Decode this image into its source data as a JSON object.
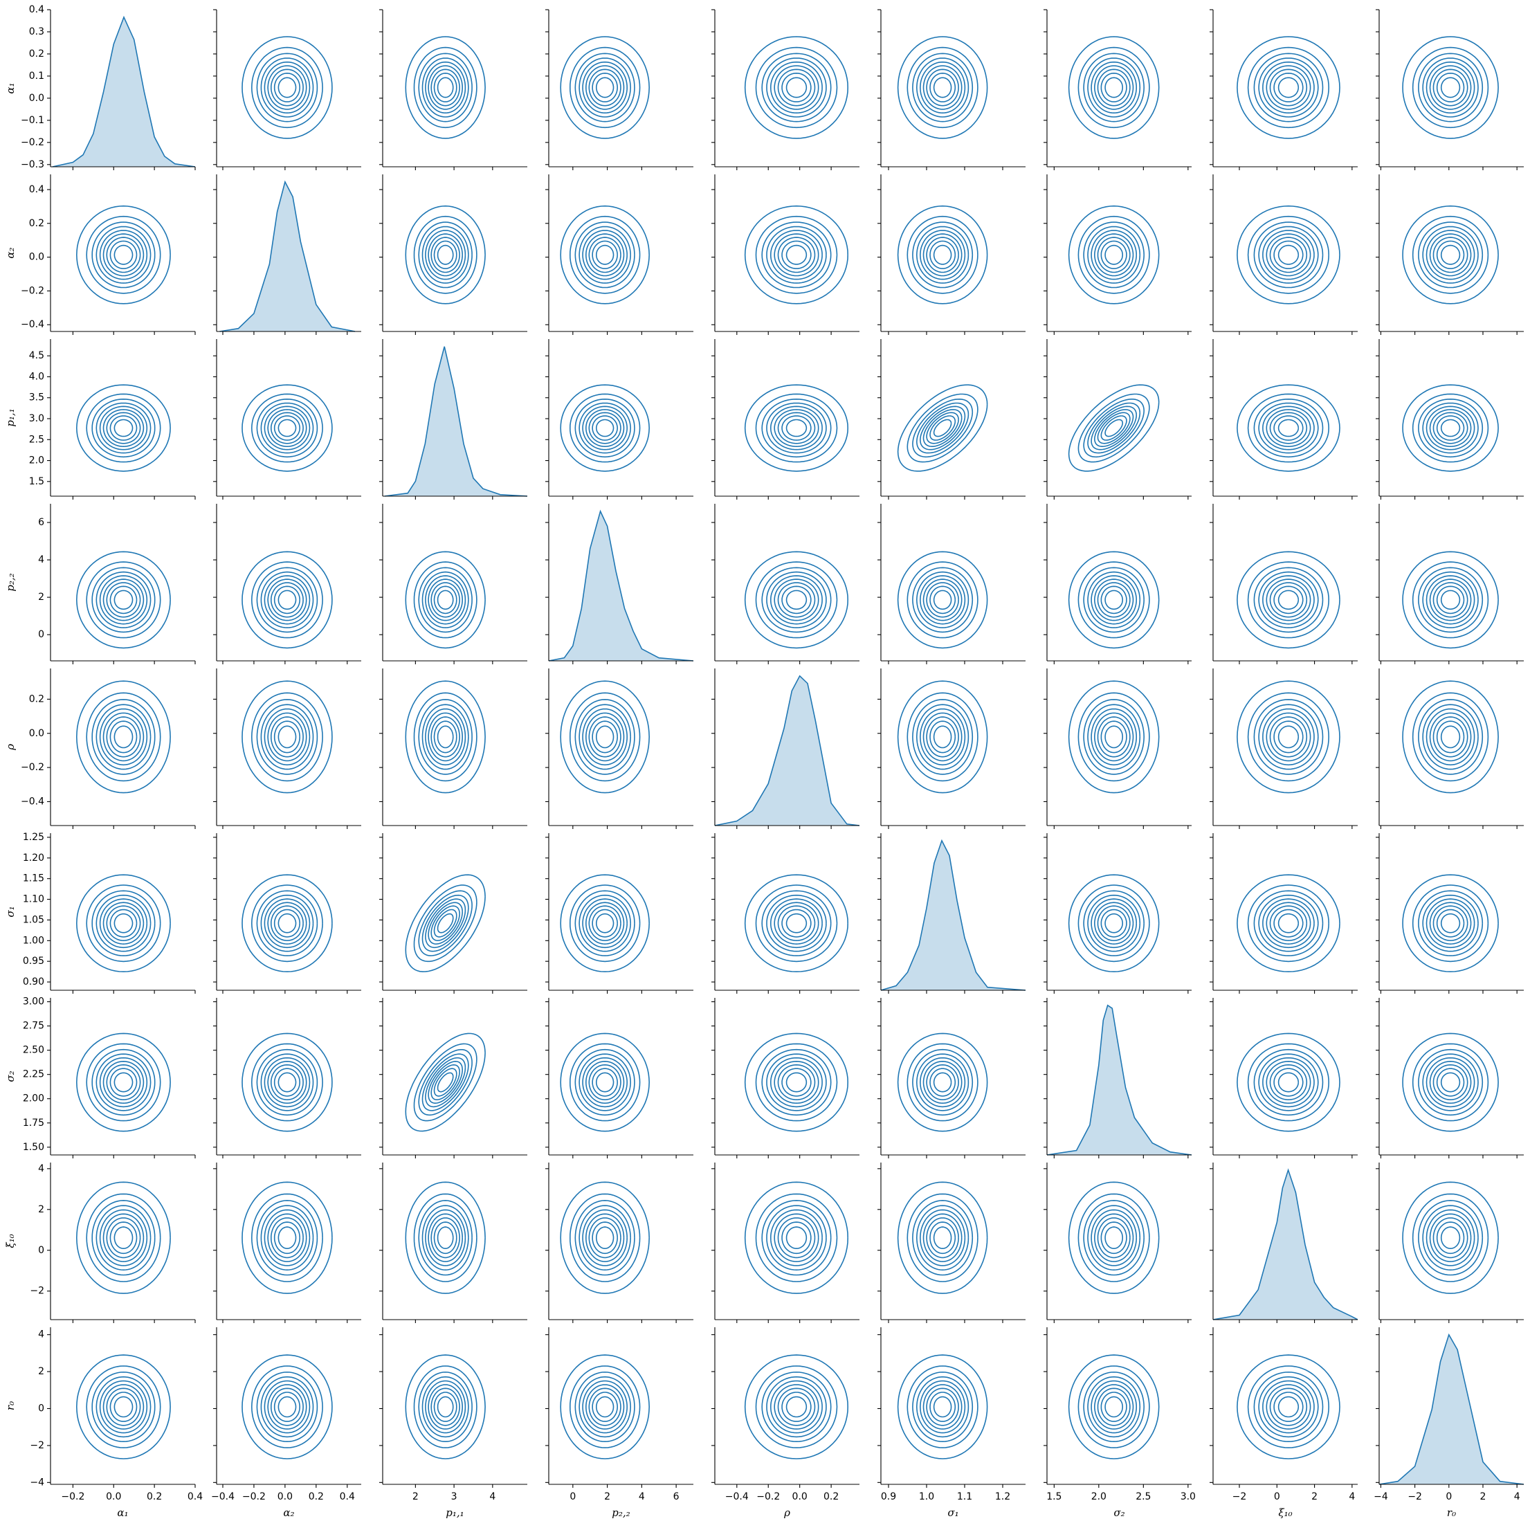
{
  "chart_data": {
    "type": "pairplot",
    "color": "#1f77b4",
    "contour_levels": [
      0.05,
      0.156,
      0.261,
      0.367,
      0.472,
      0.578,
      0.683,
      0.789,
      0.894
    ],
    "correlations": [
      {
        "pair": [
          2,
          5
        ],
        "r": 0.55
      },
      {
        "pair": [
          2,
          6
        ],
        "r": 0.6
      }
    ],
    "variables": [
      {
        "label": "α₁",
        "lim": [
          -0.31,
          0.4
        ],
        "yticks": [
          {
            "value": -0.3,
            "label": "−0.3"
          },
          {
            "value": -0.2,
            "label": "−0.2"
          },
          {
            "value": -0.1,
            "label": "−0.1"
          },
          {
            "value": 0,
            "label": "0.0"
          },
          0.1,
          0.2,
          0.3,
          0.4
        ],
        "xticks": [
          {
            "value": -0.2,
            "label": "−0.2"
          },
          {
            "value": 0,
            "label": "0.0"
          },
          0.2,
          0.4
        ],
        "density": {
          "x": [
            -0.3,
            -0.2,
            -0.15,
            -0.1,
            -0.05,
            0,
            0.05,
            0.1,
            0.15,
            0.2,
            0.25,
            0.3,
            0.4
          ],
          "y": [
            0,
            0.03,
            0.08,
            0.22,
            0.5,
            0.82,
            1.0,
            0.85,
            0.5,
            0.2,
            0.07,
            0.02,
            0
          ]
        }
      },
      {
        "label": "α₂",
        "lim": [
          -0.44,
          0.49
        ],
        "yticks": [
          {
            "value": -0.4,
            "label": "−0.4"
          },
          {
            "value": -0.2,
            "label": "−0.2"
          },
          {
            "value": 0,
            "label": "0.0"
          },
          0.2,
          0.4
        ],
        "xticks": [
          {
            "value": -0.4,
            "label": "−0.4"
          },
          {
            "value": -0.2,
            "label": "−0.2"
          },
          {
            "value": 0,
            "label": "0.0"
          },
          0.2,
          0.4
        ],
        "density": {
          "x": [
            -0.42,
            -0.3,
            -0.2,
            -0.1,
            -0.05,
            0,
            0.05,
            0.1,
            0.2,
            0.3,
            0.45
          ],
          "y": [
            0,
            0.02,
            0.12,
            0.45,
            0.8,
            1,
            0.9,
            0.6,
            0.18,
            0.03,
            0
          ]
        }
      },
      {
        "label": "p₁,₁",
        "lim": [
          1.15,
          4.9
        ],
        "yticks": [
          1.5,
          {
            "value": 2,
            "label": "2.0"
          },
          2.5,
          {
            "value": 3,
            "label": "3.0"
          },
          3.5,
          {
            "value": 4,
            "label": "4.0"
          },
          4.5
        ],
        "xticks": [
          2,
          3,
          4
        ],
        "density": {
          "x": [
            1.2,
            1.8,
            2.0,
            2.25,
            2.5,
            2.75,
            3.0,
            3.25,
            3.5,
            3.75,
            4.2,
            4.9
          ],
          "y": [
            0,
            0.02,
            0.1,
            0.35,
            0.75,
            1,
            0.72,
            0.35,
            0.12,
            0.05,
            0.01,
            0
          ]
        }
      },
      {
        "label": "p₂,₂",
        "lim": [
          -1.4,
          7.0
        ],
        "yticks": [
          0,
          2,
          4,
          6
        ],
        "xticks": [
          0,
          2,
          4,
          6
        ],
        "density": {
          "x": [
            -1.4,
            -0.5,
            0,
            0.5,
            1,
            1.6,
            2,
            2.5,
            3,
            3.5,
            4,
            5,
            7
          ],
          "y": [
            0,
            0.02,
            0.1,
            0.35,
            0.75,
            1,
            0.9,
            0.6,
            0.35,
            0.2,
            0.08,
            0.02,
            0
          ]
        }
      },
      {
        "label": "ρ",
        "lim": [
          -0.54,
          0.38
        ],
        "yticks": [
          {
            "value": -0.4,
            "label": "−0.4"
          },
          {
            "value": -0.2,
            "label": "−0.2"
          },
          {
            "value": 0,
            "label": "0.0"
          },
          0.2
        ],
        "xticks": [
          {
            "value": -0.4,
            "label": "−0.4"
          },
          {
            "value": -0.2,
            "label": "−0.2"
          },
          {
            "value": 0,
            "label": "0.0"
          },
          0.2
        ],
        "density": {
          "x": [
            -0.54,
            -0.4,
            -0.3,
            -0.2,
            -0.1,
            -0.05,
            0,
            0.05,
            0.1,
            0.2,
            0.3,
            0.38
          ],
          "y": [
            0,
            0.03,
            0.1,
            0.28,
            0.65,
            0.9,
            1,
            0.95,
            0.7,
            0.15,
            0.01,
            0
          ]
        }
      },
      {
        "label": "σ₁",
        "lim": [
          0.88,
          1.26
        ],
        "yticks": [
          {
            "value": 0.9,
            "label": "0.90"
          },
          0.95,
          {
            "value": 1,
            "label": "1.00"
          },
          1.05,
          {
            "value": 1.1,
            "label": "1.10"
          },
          1.15,
          {
            "value": 1.2,
            "label": "1.20"
          },
          1.25
        ],
        "xticks": [
          0.9,
          {
            "value": 1,
            "label": "1.0"
          },
          1.1,
          1.2
        ],
        "density": {
          "x": [
            0.88,
            0.92,
            0.95,
            0.98,
            1.0,
            1.02,
            1.04,
            1.06,
            1.08,
            1.1,
            1.13,
            1.16,
            1.26
          ],
          "y": [
            0,
            0.03,
            0.12,
            0.3,
            0.55,
            0.85,
            1,
            0.9,
            0.6,
            0.35,
            0.12,
            0.02,
            0
          ]
        }
      },
      {
        "label": "σ₂",
        "lim": [
          1.42,
          3.04
        ],
        "yticks": [
          {
            "value": 1.5,
            "label": "1.50"
          },
          1.75,
          {
            "value": 2,
            "label": "2.00"
          },
          2.25,
          {
            "value": 2.5,
            "label": "2.50"
          },
          2.75,
          {
            "value": 3,
            "label": "3.00"
          }
        ],
        "xticks": [
          1.5,
          {
            "value": 2,
            "label": "2.0"
          },
          2.5,
          {
            "value": 3,
            "label": "3.0"
          }
        ],
        "density": {
          "x": [
            1.42,
            1.75,
            1.9,
            2.0,
            2.05,
            2.1,
            2.15,
            2.2,
            2.3,
            2.4,
            2.6,
            2.8,
            3.04
          ],
          "y": [
            0,
            0.03,
            0.2,
            0.6,
            0.9,
            1,
            0.98,
            0.8,
            0.45,
            0.25,
            0.08,
            0.02,
            0
          ]
        }
      },
      {
        "label": "ξ₁₀",
        "lim": [
          -3.4,
          4.3
        ],
        "yticks": [
          {
            "value": -2,
            "label": "−2"
          },
          0,
          2,
          4
        ],
        "xticks": [
          {
            "value": -2,
            "label": "−2"
          },
          0,
          2,
          4
        ],
        "density": {
          "x": [
            -3.4,
            -2,
            -1,
            0,
            0.3,
            0.6,
            1,
            1.5,
            2,
            2.5,
            3,
            4,
            4.3
          ],
          "y": [
            0,
            0.03,
            0.2,
            0.65,
            0.88,
            1,
            0.85,
            0.5,
            0.25,
            0.15,
            0.08,
            0.02,
            0
          ]
        }
      },
      {
        "label": "r₀",
        "lim": [
          -4.1,
          4.4
        ],
        "yticks": [
          {
            "value": -4,
            "label": "−4"
          },
          {
            "value": -2,
            "label": "−2"
          },
          0,
          2,
          4
        ],
        "xticks": [
          {
            "value": -4,
            "label": "−4"
          },
          {
            "value": -2,
            "label": "−2"
          },
          0,
          2,
          4
        ],
        "density": {
          "x": [
            -4.1,
            -3,
            -2,
            -1,
            -0.5,
            0,
            0.5,
            1,
            2,
            3,
            4.4
          ],
          "y": [
            0,
            0.02,
            0.12,
            0.5,
            0.82,
            1,
            0.9,
            0.65,
            0.15,
            0.02,
            0
          ]
        }
      }
    ]
  }
}
